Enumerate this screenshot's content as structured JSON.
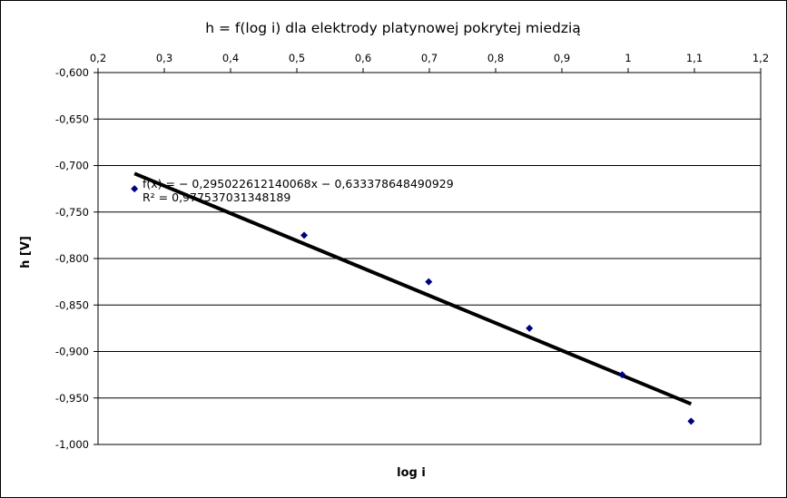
{
  "chart_data": {
    "type": "scatter",
    "title": "h = f(log i) dla elektrody platynowej pokrytej miedzią",
    "xlabel": "log i",
    "ylabel": "h [V]",
    "xlim": [
      0.2,
      1.2
    ],
    "ylim": [
      -1.0,
      -0.6
    ],
    "x_ticks": [
      "0,2",
      "0,3",
      "0,4",
      "0,5",
      "0,6",
      "0,7",
      "0,8",
      "0,9",
      "1",
      "1,1",
      "1,2"
    ],
    "x_tick_values": [
      0.2,
      0.3,
      0.4,
      0.5,
      0.6,
      0.7,
      0.8,
      0.9,
      1.0,
      1.1,
      1.2
    ],
    "y_ticks": [
      "-0,600",
      "-0,650",
      "-0,700",
      "-0,750",
      "-0,800",
      "-0,850",
      "-0,900",
      "-0,950",
      "-1,000"
    ],
    "y_tick_values": [
      -0.6,
      -0.65,
      -0.7,
      -0.75,
      -0.8,
      -0.85,
      -0.9,
      -0.95,
      -1.0
    ],
    "x_axis_position": "top",
    "grid": {
      "horizontal": true,
      "vertical": false
    },
    "series": [
      {
        "x": [
          0.255,
          0.511,
          0.699,
          0.851,
          0.991,
          1.095
        ],
        "y": [
          -0.725,
          -0.775,
          -0.825,
          -0.875,
          -0.925,
          -0.975
        ],
        "color": "#000080",
        "marker": "diamond"
      }
    ],
    "trendline": {
      "slope": -0.295022612140068,
      "intercept": -0.633378648490929,
      "x_range": [
        0.255,
        1.095
      ],
      "color": "#000000"
    },
    "annotations": [
      "f(x) = − 0,295022612140068x − 0,633378648490929",
      "R² = 0,977537031348189"
    ]
  }
}
